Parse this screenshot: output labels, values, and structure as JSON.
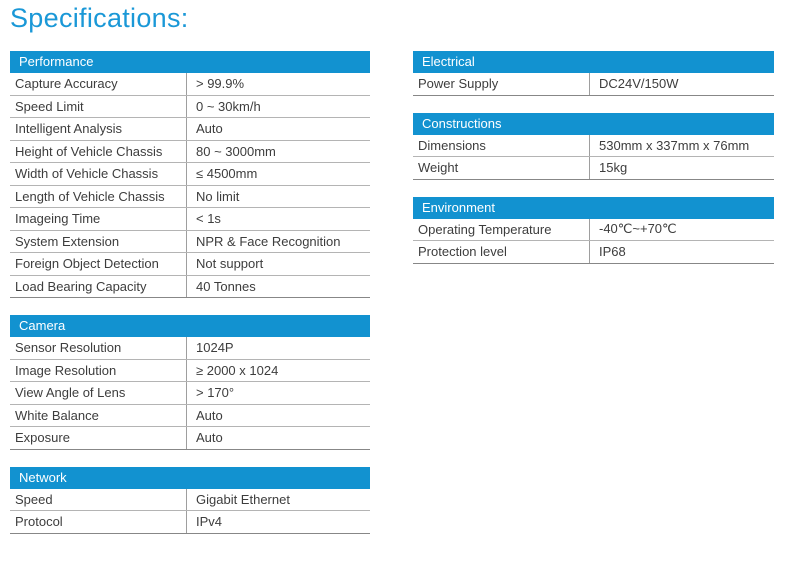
{
  "page": {
    "title": "Specifications:"
  },
  "colors": {
    "header_bg": "#1292d0",
    "header_text": "#ffffff",
    "title_blue": "#1a98d7",
    "body_text": "#3d3d3d",
    "row_line": "#b4b4b4",
    "table_bottom_line": "#878787",
    "column_divider": "#9e9e9e"
  },
  "tables": {
    "performance": {
      "title": "Performance",
      "rows": [
        {
          "label": "Capture Accuracy",
          "value": "> 99.9%"
        },
        {
          "label": "Speed Limit",
          "value": "0 ~ 30km/h"
        },
        {
          "label": "Intelligent Analysis",
          "value": "Auto"
        },
        {
          "label": "Height of Vehicle Chassis",
          "value": "80 ~ 3000mm"
        },
        {
          "label": "Width of Vehicle Chassis",
          "value": "≤ 4500mm"
        },
        {
          "label": "Length of Vehicle Chassis",
          "value": "No limit"
        },
        {
          "label": "Imageing Time",
          "value": "< 1s"
        },
        {
          "label": "System Extension",
          "value": "NPR & Face Recognition"
        },
        {
          "label": "Foreign Object Detection",
          "value": "Not support"
        },
        {
          "label": "Load Bearing Capacity",
          "value": "40 Tonnes"
        }
      ]
    },
    "camera": {
      "title": "Camera",
      "rows": [
        {
          "label": "Sensor Resolution",
          "value": "1024P"
        },
        {
          "label": "Image Resolution",
          "value": "≥ 2000 x 1024"
        },
        {
          "label": "View Angle of Lens",
          "value": "> 170°"
        },
        {
          "label": "White Balance",
          "value": "Auto"
        },
        {
          "label": "Exposure",
          "value": "Auto"
        }
      ]
    },
    "network": {
      "title": "Network",
      "rows": [
        {
          "label": "Speed",
          "value": "Gigabit Ethernet"
        },
        {
          "label": "Protocol",
          "value": "IPv4"
        }
      ]
    },
    "electrical": {
      "title": "Electrical",
      "rows": [
        {
          "label": "Power Supply",
          "value": "DC24V/150W"
        }
      ]
    },
    "constructions": {
      "title": "Constructions",
      "rows": [
        {
          "label": "Dimensions",
          "value": "530mm x 337mm x 76mm"
        },
        {
          "label": "Weight",
          "value": "15kg"
        }
      ]
    },
    "environment": {
      "title": "Environment",
      "rows": [
        {
          "label": "Operating Temperature",
          "value": "-40℃~+70℃"
        },
        {
          "label": "Protection level",
          "value": "IP68"
        }
      ]
    }
  }
}
